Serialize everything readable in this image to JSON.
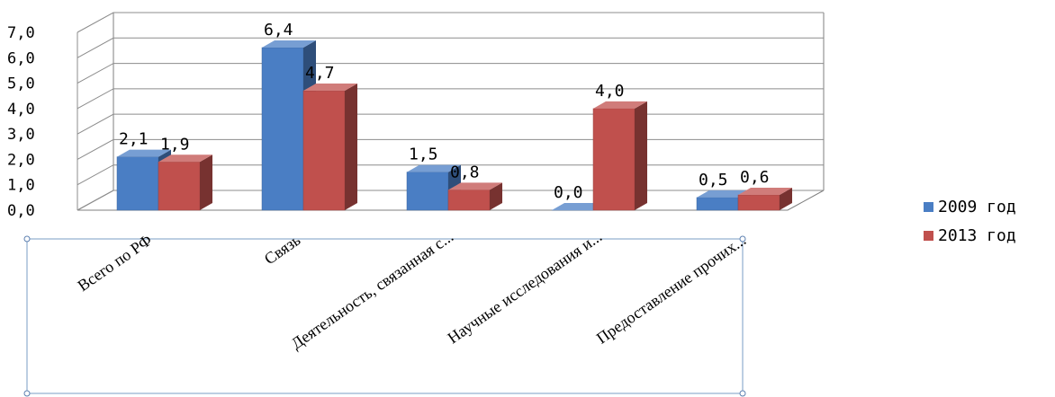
{
  "chart_data": {
    "type": "bar",
    "categories": [
      "Всего по РФ",
      "Связь",
      "Деятельность, связанная с...",
      "Научные исследования и...",
      "Предоставление прочих..."
    ],
    "series": [
      {
        "name": "2009 год",
        "values": [
          2.1,
          6.4,
          1.5,
          0.0,
          0.5
        ],
        "labels": [
          "2,1",
          "6,4",
          "1,5",
          "0,0",
          "0,5"
        ],
        "color": "#4a7ec4"
      },
      {
        "name": "2013 год",
        "values": [
          1.9,
          4.7,
          0.8,
          4.0,
          0.6
        ],
        "labels": [
          "1,9",
          "4,7",
          "0,8",
          "4,0",
          "0,6"
        ],
        "color": "#c0504d"
      }
    ],
    "yticks": [
      "0,0",
      "1,0",
      "2,0",
      "3,0",
      "4,0",
      "5,0",
      "6,0",
      "7,0"
    ],
    "ylim": [
      0,
      7
    ],
    "grid": true,
    "legend_position": "right",
    "style": "3d-clustered-column"
  }
}
